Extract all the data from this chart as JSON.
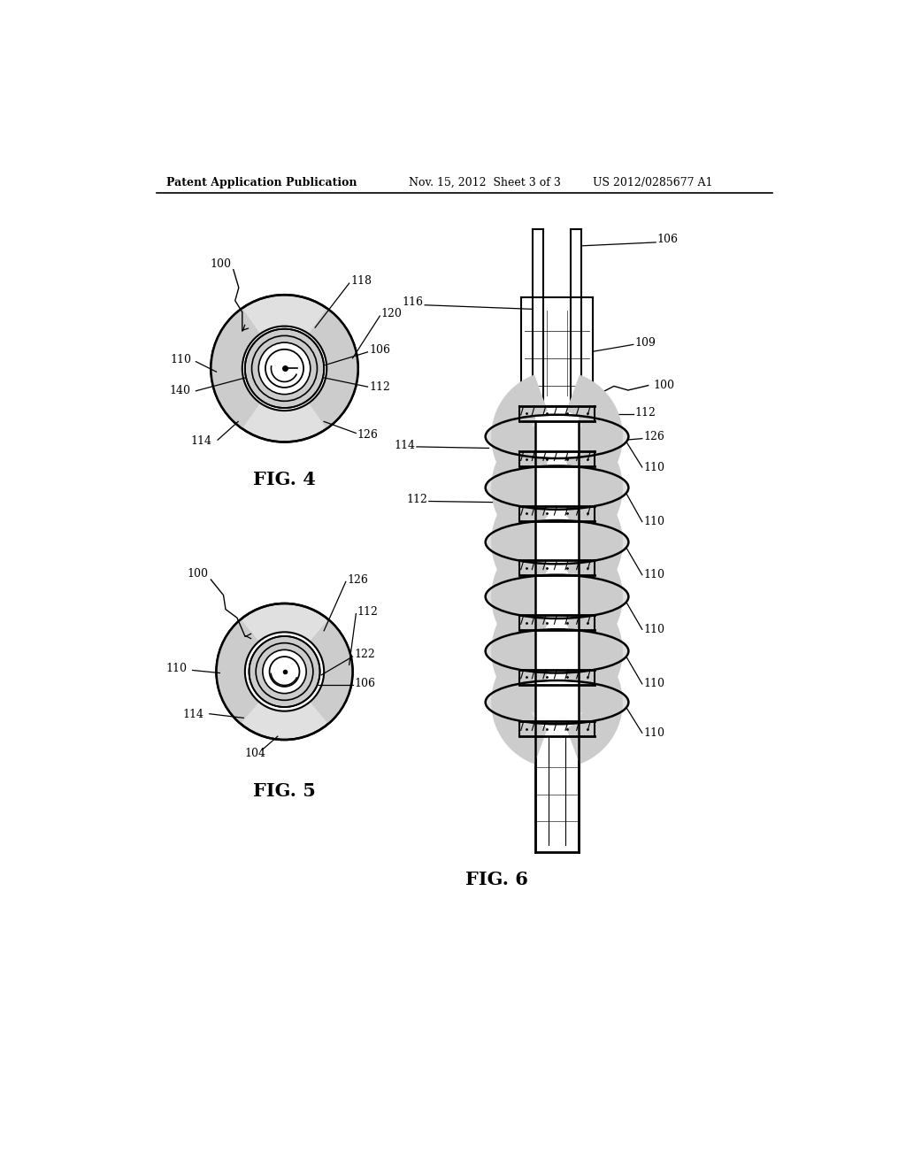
{
  "background_color": "#ffffff",
  "header_left": "Patent Application Publication",
  "header_center": "Nov. 15, 2012  Sheet 3 of 3",
  "header_right": "US 2012/0285677 A1",
  "fig4_label": "FIG. 4",
  "fig5_label": "FIG. 5",
  "fig6_label": "FIG. 6",
  "line_color": "#000000",
  "shade_color": "#cccccc",
  "shade_light": "#e0e0e0"
}
